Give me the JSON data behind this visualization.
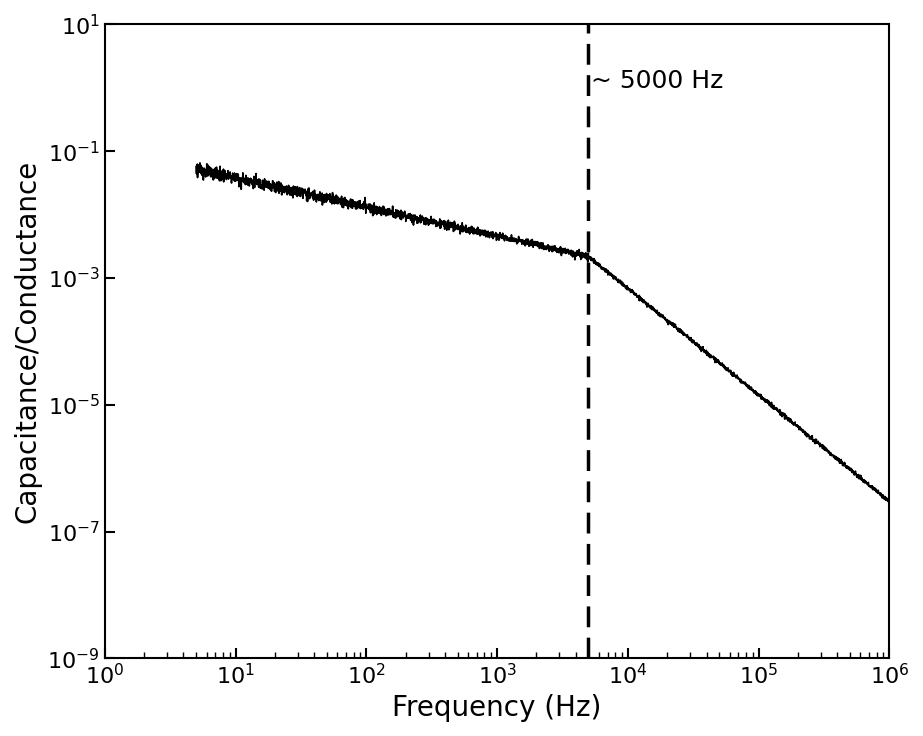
{
  "xlabel": "Frequency (Hz)",
  "ylabel": "Capacitance/Conductance",
  "annotation": "~ 5000 Hz",
  "vline_x": 5000,
  "xlim": [
    1,
    1000000
  ],
  "ylim": [
    1e-09,
    10
  ],
  "x_start": 5.0,
  "x_end": 1000000.0,
  "f0": 5000,
  "y_at_5hz": 0.052,
  "y_at_f0": 0.0022,
  "y_at_1e6": 3e-07,
  "alpha_low": 0.295,
  "alpha_high": 1.62,
  "noise_std_low": 0.12,
  "noise_std_high": 0.04,
  "noise_freq_boundary": 5000,
  "curve_color": "#000000",
  "dashed_color": "#000000",
  "background_color": "#ffffff",
  "line_width": 1.2,
  "annotation_fontsize": 18,
  "label_fontsize": 20,
  "tick_fontsize": 16,
  "n_points": 3000
}
